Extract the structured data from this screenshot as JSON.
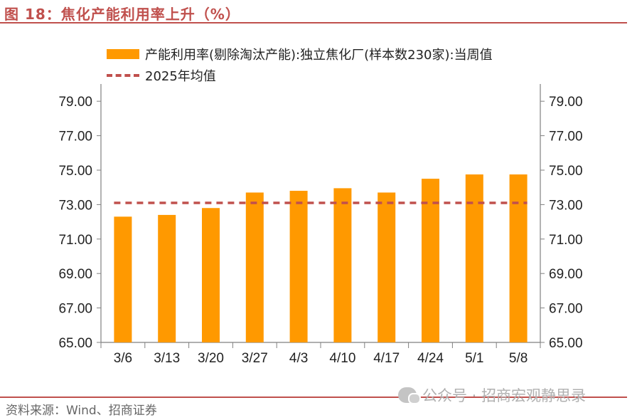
{
  "title": "图 18：焦化产能利用率上升（%）",
  "source": "资料来源：Wind、招商证券",
  "watermark": "公众号 · 招商宏观静思录",
  "colors": {
    "bar": "#ff9900",
    "avg_line": "#c0504d",
    "axis": "#808080",
    "accent": "#c0504d"
  },
  "chart_data": {
    "type": "bar",
    "categories": [
      "3/6",
      "3/13",
      "3/20",
      "3/27",
      "4/3",
      "4/10",
      "4/17",
      "4/24",
      "5/1",
      "5/8"
    ],
    "series": [
      {
        "name": "产能利用率(剔除淘汰产能):独立焦化厂(样本数230家):当周值",
        "type": "bar",
        "values": [
          72.3,
          72.4,
          72.8,
          73.7,
          73.8,
          73.95,
          73.7,
          74.5,
          74.75,
          74.75
        ]
      },
      {
        "name": "2025年均值",
        "type": "line",
        "style": "dashed",
        "values": [
          73.1,
          73.1,
          73.1,
          73.1,
          73.1,
          73.1,
          73.1,
          73.1,
          73.1,
          73.1
        ]
      }
    ],
    "ylim": [
      65,
      80
    ],
    "yticks": [
      "65.00",
      "67.00",
      "69.00",
      "71.00",
      "73.00",
      "75.00",
      "77.00",
      "79.00"
    ],
    "ytick_values": [
      65,
      67,
      69,
      71,
      73,
      75,
      77,
      79
    ],
    "y_axes": "left-and-right",
    "legend_position": "top",
    "grid": false
  }
}
